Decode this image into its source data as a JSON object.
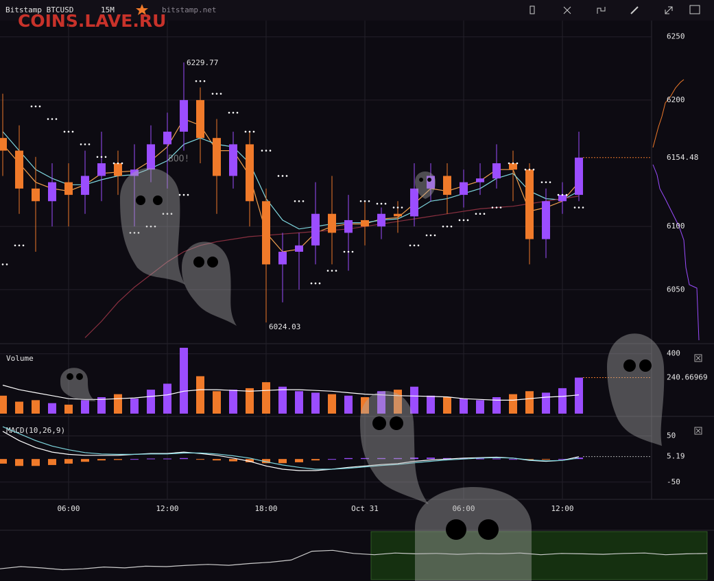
{
  "toolbar": {
    "symbol": "Bitstamp BTCUSD",
    "interval": "15M",
    "site": "bitstamp.net"
  },
  "watermark": "COINS.LAVE.RU",
  "ghost_text": "BOO!",
  "chart_data": [
    {
      "type": "candlestick",
      "categories": [
        null,
        null,
        null,
        null,
        "06:00",
        null,
        null,
        null,
        null,
        null,
        "12:00",
        null,
        null,
        null,
        null,
        null,
        "18:00",
        null,
        null,
        null,
        null,
        null,
        "Oct 31",
        null,
        null,
        null,
        null,
        null,
        "06:00",
        null,
        null,
        null,
        null,
        null,
        "12:00",
        null
      ],
      "open": [
        6170,
        6160,
        6130,
        6120,
        6135,
        6125,
        6140,
        6150,
        6140,
        6145,
        6165,
        6175,
        6200,
        6170,
        6140,
        6165,
        6120,
        6070,
        6080,
        6085,
        6110,
        6095,
        6105,
        6100,
        6110,
        6108,
        6130,
        6140,
        6125,
        6135,
        6138,
        6150,
        6145,
        6090,
        6120,
        6125
      ],
      "high": [
        6205,
        6180,
        6155,
        6150,
        6150,
        6160,
        6175,
        6160,
        6165,
        6180,
        6190,
        6229.77,
        6210,
        6185,
        6175,
        6175,
        6130,
        6095,
        6095,
        6135,
        6140,
        6125,
        6120,
        6115,
        6120,
        6150,
        6150,
        6150,
        6145,
        6150,
        6165,
        6160,
        6150,
        6130,
        6135,
        6175
      ],
      "low": [
        6140,
        6110,
        6080,
        6100,
        6100,
        6110,
        6120,
        6125,
        6100,
        6135,
        6130,
        6160,
        6150,
        6110,
        6130,
        6100,
        6024.03,
        6040,
        6050,
        6070,
        6070,
        6065,
        6085,
        6090,
        6095,
        6100,
        6120,
        6110,
        6115,
        6125,
        6130,
        6120,
        6070,
        6075,
        6110,
        6120
      ],
      "close": [
        6160,
        6130,
        6120,
        6135,
        6125,
        6140,
        6150,
        6140,
        6145,
        6165,
        6175,
        6200,
        6170,
        6140,
        6165,
        6120,
        6070,
        6080,
        6085,
        6110,
        6095,
        6105,
        6100,
        6110,
        6108,
        6130,
        6140,
        6125,
        6135,
        6138,
        6150,
        6145,
        6090,
        6120,
        6125,
        6154.48
      ],
      "up_color": "#9b4dff",
      "down_color": "#f07a2a",
      "lines": [
        {
          "color": "#f0a050",
          "values": [
            6165,
            6150,
            6135,
            6130,
            6128,
            6133,
            6142,
            6143,
            6144,
            6152,
            6163,
            6185,
            6180,
            6160,
            6160,
            6140,
            6095,
            6080,
            6082,
            6095,
            6100,
            6102,
            6102,
            6106,
            6107,
            6118,
            6130,
            6128,
            6132,
            6136,
            6145,
            6145,
            6112,
            6115,
            6120,
            6135
          ]
        },
        {
          "color": "#7fd8e0",
          "values": [
            6175,
            6160,
            6145,
            6138,
            6133,
            6133,
            6137,
            6140,
            6141,
            6146,
            6152,
            6165,
            6170,
            6165,
            6163,
            6150,
            6122,
            6105,
            6098,
            6100,
            6102,
            6103,
            6103,
            6105,
            6106,
            6112,
            6120,
            6122,
            6126,
            6130,
            6138,
            6142,
            6128,
            6122,
            6121,
            6128
          ]
        },
        {
          "color": "#8a3040",
          "values": [
            null,
            null,
            null,
            null,
            null,
            6012,
            6025,
            6040,
            6052,
            6062,
            6072,
            6080,
            6085,
            6088,
            6090,
            6092,
            6093,
            6094,
            6095,
            6096,
            6097,
            6098,
            6100,
            6102,
            6104,
            6106,
            6108,
            6110,
            6112,
            6114,
            6115,
            6116,
            6118,
            6120,
            6122,
            6124
          ]
        }
      ],
      "sar": {
        "color": "#ffffff",
        "values": [
          6070,
          6085,
          6195,
          6185,
          6175,
          6165,
          6155,
          6150,
          6095,
          6100,
          6110,
          6125,
          6215,
          6205,
          6190,
          6175,
          6160,
          6140,
          6120,
          6055,
          6065,
          6080,
          6120,
          6118,
          6115,
          6085,
          6093,
          6100,
          6105,
          6110,
          6115,
          6150,
          6145,
          6135,
          6125,
          6115
        ]
      },
      "ylim": [
        6010,
        6258
      ],
      "yticks": [
        6050,
        6100,
        6200,
        6250
      ]
    },
    {
      "type": "volume",
      "title": "Volume",
      "values": [
        120,
        80,
        90,
        70,
        60,
        90,
        110,
        130,
        100,
        160,
        200,
        440,
        250,
        150,
        160,
        170,
        210,
        180,
        150,
        140,
        130,
        120,
        110,
        150,
        160,
        180,
        120,
        110,
        100,
        90,
        110,
        130,
        150,
        140,
        170,
        240.66969
      ],
      "line": {
        "color": "#ffffff",
        "values": [
          190,
          160,
          140,
          120,
          100,
          95,
          95,
          100,
          105,
          115,
          125,
          150,
          160,
          160,
          155,
          150,
          155,
          160,
          160,
          155,
          150,
          140,
          130,
          125,
          120,
          118,
          115,
          112,
          100,
          95,
          90,
          90,
          100,
          110,
          115,
          125
        ]
      },
      "ylim": [
        0,
        440
      ],
      "yticks": [
        400
      ]
    },
    {
      "type": "macd",
      "title": "MACD(10,26,9)",
      "histogram": [
        -10,
        -15,
        -15,
        -13,
        -10,
        -6,
        -3,
        -2,
        0,
        1,
        1,
        2,
        -1,
        -3,
        -5,
        -7,
        -9,
        -9,
        -7,
        -3,
        0,
        2,
        2,
        2,
        2,
        3,
        3,
        2,
        2,
        1,
        1,
        0,
        -1,
        -1,
        0,
        3
      ],
      "lines": [
        {
          "color": "#ffffff",
          "values": [
            60,
            40,
            25,
            15,
            10,
            8,
            8,
            8,
            10,
            12,
            12,
            15,
            12,
            8,
            2,
            -5,
            -15,
            -22,
            -25,
            -25,
            -22,
            -18,
            -15,
            -12,
            -10,
            -5,
            -2,
            0,
            2,
            3,
            4,
            2,
            -3,
            -5,
            -3,
            5.19
          ]
        },
        {
          "color": "#7fd8e0",
          "values": [
            70,
            55,
            40,
            28,
            20,
            14,
            11,
            10,
            10,
            11,
            11,
            13,
            13,
            11,
            7,
            2,
            -6,
            -13,
            -18,
            -22,
            -22,
            -20,
            -17,
            -14,
            -12,
            -8,
            -5,
            -2,
            0,
            2,
            3,
            2,
            -2,
            -4,
            -3,
            2
          ]
        }
      ],
      "ylim": [
        -83,
        85
      ],
      "yticks": [
        50,
        -50
      ]
    },
    {
      "type": "navigator",
      "color": "#cccccc",
      "values": [
        20,
        25,
        22,
        18,
        20,
        24,
        22,
        26,
        25,
        28,
        30,
        28,
        32,
        35,
        40,
        60,
        62,
        55,
        52,
        56,
        54,
        55,
        53,
        55,
        54,
        56,
        52,
        55,
        54,
        53,
        55,
        56,
        52,
        54,
        55
      ],
      "ylim": [
        0,
        100
      ]
    }
  ]
}
